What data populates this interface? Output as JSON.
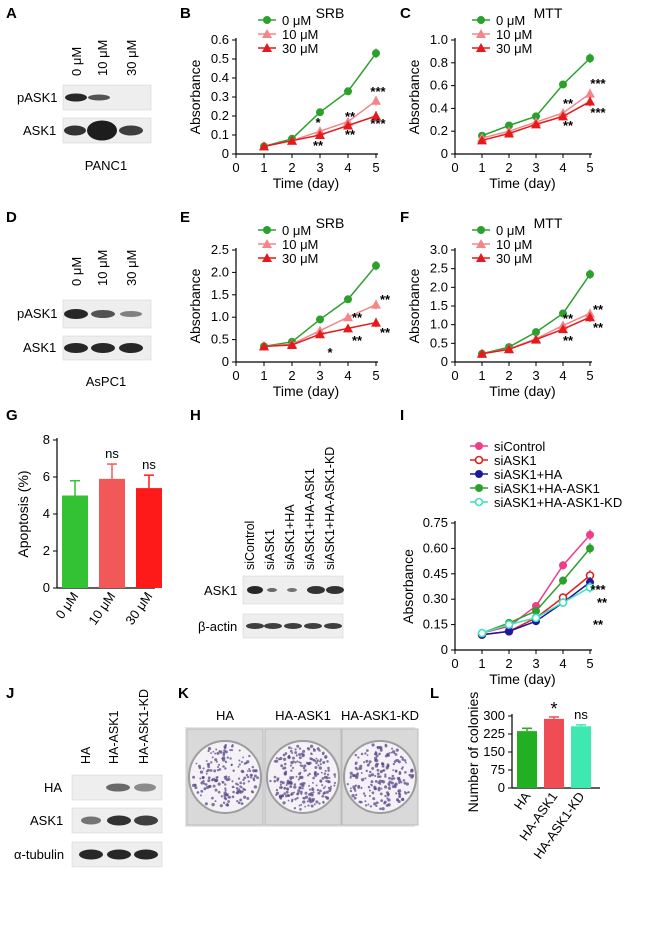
{
  "panel_labels": {
    "A": "A",
    "B": "B",
    "C": "C",
    "D": "D",
    "E": "E",
    "F": "F",
    "G": "G",
    "H": "H",
    "I": "I",
    "J": "J",
    "K": "K",
    "L": "L"
  },
  "blots": {
    "A": {
      "lanes": [
        "0 μM",
        "10 μM",
        "30 μM"
      ],
      "rows": [
        "pASK1",
        "ASK1"
      ],
      "cell_line": "PANC1"
    },
    "D": {
      "lanes": [
        "0 μM",
        "10 μM",
        "30 μM"
      ],
      "rows": [
        "pASK1",
        "ASK1"
      ],
      "cell_line": "AsPC1"
    },
    "H": {
      "lanes": [
        "siControl",
        "siASK1",
        "siASK1+HA",
        "siASK1+HA-ASK1",
        "siASK1+HA-ASK1-KD"
      ],
      "rows": [
        "ASK1",
        "β-actin"
      ]
    },
    "J": {
      "lanes": [
        "HA",
        "HA-ASK1",
        "HA-ASK1-KD"
      ],
      "rows": [
        "HA",
        "ASK1",
        "α-tubulin"
      ]
    }
  },
  "colony_plates": {
    "labels": [
      "HA",
      "HA-ASK1",
      "HA-ASK1-KD"
    ]
  },
  "chart_data": [
    {
      "id": "B",
      "type": "line",
      "title": "SRB",
      "xlabel": "Time (day)",
      "ylabel": "Absorbance",
      "x": [
        1,
        2,
        3,
        4,
        5
      ],
      "xlim": [
        0,
        5
      ],
      "ylim": [
        0,
        0.6
      ],
      "yticks": [
        "0",
        "0.1",
        "0.2",
        "0.3",
        "0.4",
        "0.5",
        "0.6"
      ],
      "xticks": [
        "0",
        "1",
        "2",
        "3",
        "4",
        "5"
      ],
      "series": [
        {
          "name": "0 μM",
          "values": [
            0.04,
            0.08,
            0.22,
            0.33,
            0.53
          ],
          "color": "#2ca02c",
          "marker": "circle"
        },
        {
          "name": "10 μM",
          "values": [
            0.04,
            0.07,
            0.12,
            0.17,
            0.28
          ],
          "color": "#f4868a",
          "marker": "tri"
        },
        {
          "name": "30 μM",
          "values": [
            0.04,
            0.07,
            0.1,
            0.15,
            0.2
          ],
          "color": "#e41a1c",
          "marker": "tri"
        }
      ],
      "annotations": [
        "*",
        "**",
        "**",
        "**",
        "***",
        "***"
      ]
    },
    {
      "id": "C",
      "type": "line",
      "title": "MTT",
      "xlabel": "Time (day)",
      "ylabel": "Absorbance",
      "x": [
        1,
        2,
        3,
        4,
        5
      ],
      "xlim": [
        0,
        5
      ],
      "ylim": [
        0,
        1.0
      ],
      "yticks": [
        "0",
        "0.2",
        "0.4",
        "0.6",
        "0.8",
        "1.0"
      ],
      "xticks": [
        "0",
        "1",
        "2",
        "3",
        "4",
        "5"
      ],
      "series": [
        {
          "name": "0 μM",
          "values": [
            0.16,
            0.25,
            0.33,
            0.61,
            0.84
          ],
          "color": "#2ca02c",
          "marker": "circle"
        },
        {
          "name": "10 μM",
          "values": [
            0.14,
            0.2,
            0.28,
            0.36,
            0.53
          ],
          "color": "#f4868a",
          "marker": "tri"
        },
        {
          "name": "30 μM",
          "values": [
            0.12,
            0.18,
            0.26,
            0.33,
            0.46
          ],
          "color": "#e41a1c",
          "marker": "tri"
        }
      ],
      "annotations": [
        "**",
        "**",
        "***",
        "***"
      ]
    },
    {
      "id": "E",
      "type": "line",
      "title": "SRB",
      "xlabel": "Time (day)",
      "ylabel": "Absorbance",
      "x": [
        1,
        2,
        3,
        4,
        5
      ],
      "xlim": [
        0,
        5
      ],
      "ylim": [
        0,
        2.5
      ],
      "yticks": [
        "0",
        "0.5",
        "1.0",
        "1.5",
        "2.0",
        "2.5"
      ],
      "xticks": [
        "0",
        "1",
        "2",
        "3",
        "4",
        "5"
      ],
      "series": [
        {
          "name": "0 μM",
          "values": [
            0.35,
            0.45,
            0.95,
            1.4,
            2.15
          ],
          "color": "#2ca02c",
          "marker": "circle"
        },
        {
          "name": "10 μM",
          "values": [
            0.35,
            0.4,
            0.7,
            1.0,
            1.28
          ],
          "color": "#f4868a",
          "marker": "tri"
        },
        {
          "name": "30 μM",
          "values": [
            0.35,
            0.38,
            0.62,
            0.75,
            0.88
          ],
          "color": "#e41a1c",
          "marker": "tri"
        }
      ],
      "annotations": [
        "*",
        "**",
        "**",
        "**",
        "**"
      ]
    },
    {
      "id": "F",
      "type": "line",
      "title": "MTT",
      "xlabel": "Time (day)",
      "ylabel": "Absorbance",
      "x": [
        1,
        2,
        3,
        4,
        5
      ],
      "xlim": [
        0,
        5
      ],
      "ylim": [
        0,
        3.0
      ],
      "yticks": [
        "0",
        "0.5",
        "1.0",
        "1.5",
        "2.0",
        "2.5",
        "3.0"
      ],
      "xticks": [
        "0",
        "1",
        "2",
        "3",
        "4",
        "5"
      ],
      "series": [
        {
          "name": "0 μM",
          "values": [
            0.22,
            0.4,
            0.8,
            1.3,
            2.35
          ],
          "color": "#2ca02c",
          "marker": "circle"
        },
        {
          "name": "10 μM",
          "values": [
            0.22,
            0.35,
            0.62,
            0.98,
            1.3
          ],
          "color": "#f4868a",
          "marker": "tri"
        },
        {
          "name": "30 μM",
          "values": [
            0.22,
            0.34,
            0.6,
            0.88,
            1.2
          ],
          "color": "#e41a1c",
          "marker": "tri"
        }
      ],
      "annotations": [
        "**",
        "**",
        "**",
        "**"
      ]
    },
    {
      "id": "G",
      "type": "bar",
      "ylabel": "Apoptosis (%)",
      "ylim": [
        0,
        8
      ],
      "yticks": [
        "0",
        "2",
        "4",
        "6",
        "8"
      ],
      "categories": [
        "0 μM",
        "10 μM",
        "30 μM"
      ],
      "values": [
        5.0,
        5.9,
        5.4
      ],
      "errors": [
        0.8,
        0.8,
        0.7
      ],
      "colors": [
        "#33c233",
        "#f25858",
        "#ff1a1a"
      ],
      "annotations": [
        "",
        "ns",
        "ns"
      ]
    },
    {
      "id": "I",
      "type": "line",
      "xlabel": "Time (day)",
      "ylabel": "Absorbance",
      "x": [
        1,
        2,
        3,
        4,
        5
      ],
      "xlim": [
        0,
        5
      ],
      "ylim": [
        0,
        0.75
      ],
      "yticks": [
        "0",
        "0.15",
        "0.30",
        "0.45",
        "0.60",
        "0.75"
      ],
      "xticks": [
        "0",
        "1",
        "2",
        "3",
        "4",
        "5"
      ],
      "series": [
        {
          "name": "siControl",
          "values": [
            0.1,
            0.14,
            0.26,
            0.5,
            0.68
          ],
          "color": "#ee3d8a",
          "marker": "circle"
        },
        {
          "name": "siASK1",
          "values": [
            0.09,
            0.11,
            0.19,
            0.31,
            0.44
          ],
          "color": "#e02020",
          "marker": "ocircle"
        },
        {
          "name": "siASK1+HA",
          "values": [
            0.09,
            0.11,
            0.17,
            0.28,
            0.4
          ],
          "color": "#1a1aa0",
          "marker": "circle"
        },
        {
          "name": "siASK1+HA-ASK1",
          "values": [
            0.1,
            0.16,
            0.23,
            0.41,
            0.6
          ],
          "color": "#2ca02c",
          "marker": "circle"
        },
        {
          "name": "siASK1+HA-ASK1-KD",
          "values": [
            0.1,
            0.15,
            0.19,
            0.28,
            0.37
          ],
          "color": "#40e0c0",
          "marker": "ocircle"
        }
      ],
      "annotations": [
        "***",
        "**",
        "**"
      ]
    },
    {
      "id": "L",
      "type": "bar",
      "ylabel": "Number of colonies",
      "ylim": [
        0,
        300
      ],
      "yticks": [
        "0",
        "75",
        "150",
        "225",
        "300"
      ],
      "categories": [
        "HA",
        "HA-ASK1",
        "HA-ASK1-KD"
      ],
      "values": [
        237,
        288,
        257
      ],
      "errors": [
        12,
        8,
        6
      ],
      "colors": [
        "#22b022",
        "#f04c55",
        "#3fe8b0"
      ],
      "annotations": [
        "",
        "*",
        "ns"
      ]
    }
  ]
}
